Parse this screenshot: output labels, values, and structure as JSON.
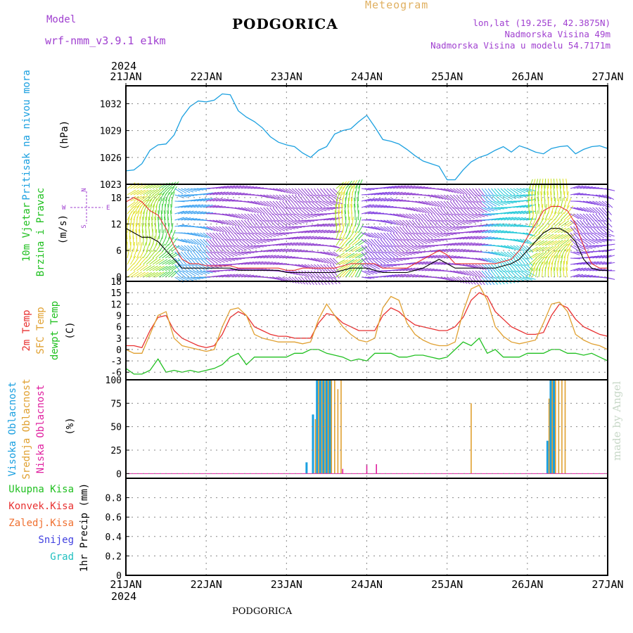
{
  "header": {
    "title": "PODGORICA",
    "subtitle": "Meteogram",
    "model_label": "Model",
    "model_value": "wrf-nmm_v3.9.1  e1km",
    "coords": "lon,lat (19.25E, 42.3875N)",
    "elevation": "Nadmorska Visina 49m",
    "model_elevation": "Nadmorska Visina u modelu 54.7171m",
    "year": "2024"
  },
  "footer": {
    "location": "PODGORICA",
    "credit": "made by Angel"
  },
  "colors": {
    "pressure": "#1ba0e0",
    "temp2m": "#e83030",
    "sfc_temp": "#e0a030",
    "dewpt": "#20c020",
    "cloud_high": "#1ba0e0",
    "cloud_mid": "#e0a030",
    "cloud_low": "#e020a0",
    "wind_speed": "#000000",
    "gust": "#e83030",
    "accent_purple": "#a040d0"
  },
  "chart_data": [
    {
      "type": "line",
      "panel": "pressure",
      "ylabel": [
        "Pritisak na nivou mora",
        "(hPa)"
      ],
      "ylim": [
        1023,
        1034
      ],
      "yticks": [
        1023,
        1026,
        1029,
        1032
      ],
      "x_unit": "days since 2024-01-21 00Z",
      "x_ticks": [
        "21JAN",
        "22JAN",
        "23JAN",
        "24JAN",
        "25JAN",
        "26JAN",
        "27JAN"
      ],
      "grid": true,
      "series": [
        {
          "name": "pressure",
          "x": [
            0.0,
            0.1,
            0.2,
            0.3,
            0.4,
            0.5,
            0.6,
            0.7,
            0.8,
            0.9,
            1.0,
            1.1,
            1.2,
            1.3,
            1.4,
            1.5,
            1.6,
            1.7,
            1.8,
            1.9,
            2.0,
            2.1,
            2.2,
            2.3,
            2.4,
            2.5,
            2.6,
            2.7,
            2.8,
            2.9,
            3.0,
            3.1,
            3.2,
            3.3,
            3.4,
            3.5,
            3.6,
            3.7,
            3.8,
            3.9,
            4.0,
            4.1,
            4.2,
            4.3,
            4.4,
            4.5,
            4.6,
            4.7,
            4.8,
            4.9,
            5.0,
            5.1,
            5.2,
            5.3,
            5.4,
            5.5,
            5.6,
            5.7,
            5.8,
            5.9,
            6.0
          ],
          "y": [
            1024.5,
            1024.6,
            1025.3,
            1026.8,
            1027.4,
            1027.5,
            1028.5,
            1030.5,
            1031.7,
            1032.3,
            1032.2,
            1032.4,
            1033.1,
            1033.0,
            1031.2,
            1030.5,
            1030.0,
            1029.3,
            1028.3,
            1027.7,
            1027.4,
            1027.2,
            1026.5,
            1026.0,
            1026.8,
            1027.2,
            1028.6,
            1029.0,
            1029.2,
            1030.0,
            1030.7,
            1029.4,
            1028.0,
            1027.8,
            1027.5,
            1026.9,
            1026.2,
            1025.6,
            1025.3,
            1025.0,
            1023.5,
            1023.5,
            1024.6,
            1025.5,
            1026.0,
            1026.3,
            1026.8,
            1027.2,
            1026.6,
            1027.3,
            1027.0,
            1026.6,
            1026.4,
            1027.0,
            1027.2,
            1027.3,
            1026.4,
            1026.9,
            1027.2,
            1027.3,
            1027.0
          ]
        }
      ]
    },
    {
      "type": "line",
      "panel": "wind",
      "ylabel": [
        "10m Vjetar",
        "Brzina i Pravac",
        "(m/s)"
      ],
      "compass": [
        "N",
        "W",
        "E",
        "S"
      ],
      "ylim": [
        -1,
        21
      ],
      "yticks": [
        0,
        6,
        12,
        18
      ],
      "grid": true,
      "series": [
        {
          "name": "wind_speed",
          "x": [
            0.0,
            0.1,
            0.2,
            0.3,
            0.4,
            0.5,
            0.6,
            0.7,
            0.8,
            0.9,
            1.0,
            1.1,
            1.2,
            1.3,
            1.4,
            1.5,
            1.6,
            1.7,
            1.8,
            1.9,
            2.0,
            2.1,
            2.2,
            2.3,
            2.4,
            2.5,
            2.6,
            2.7,
            2.8,
            2.9,
            3.0,
            3.1,
            3.2,
            3.3,
            3.4,
            3.5,
            3.6,
            3.7,
            3.8,
            3.9,
            4.0,
            4.1,
            4.2,
            4.3,
            4.4,
            4.5,
            4.6,
            4.7,
            4.8,
            4.9,
            5.0,
            5.1,
            5.2,
            5.3,
            5.4,
            5.5,
            5.6,
            5.7,
            5.8,
            5.9,
            6.0
          ],
          "y": [
            11,
            10,
            9,
            9,
            8,
            6,
            4,
            2,
            2,
            2,
            2,
            2,
            2,
            2,
            1.5,
            1.5,
            1.5,
            1.5,
            1.5,
            1.5,
            1,
            1,
            1,
            1,
            1,
            1,
            1,
            1.5,
            2,
            2,
            2,
            1.5,
            1,
            1,
            1,
            1,
            1.5,
            2,
            3,
            4,
            3,
            2,
            2,
            2,
            2,
            2,
            2,
            2.5,
            3,
            4,
            6,
            8,
            10,
            11,
            11,
            10,
            8,
            4,
            2,
            1.5,
            1.5
          ]
        },
        {
          "name": "gust",
          "x": [
            0.0,
            0.1,
            0.2,
            0.3,
            0.4,
            0.5,
            0.6,
            0.7,
            0.8,
            0.9,
            1.0,
            1.1,
            1.2,
            1.3,
            1.4,
            1.5,
            1.6,
            1.7,
            1.8,
            1.9,
            2.0,
            2.1,
            2.2,
            2.3,
            2.4,
            2.5,
            2.6,
            2.7,
            2.8,
            2.9,
            3.0,
            3.1,
            3.2,
            3.3,
            3.4,
            3.5,
            3.6,
            3.7,
            3.8,
            3.9,
            4.0,
            4.1,
            4.2,
            4.3,
            4.4,
            4.5,
            4.6,
            4.7,
            4.8,
            4.9,
            5.0,
            5.1,
            5.2,
            5.3,
            5.4,
            5.5,
            5.6,
            5.7,
            5.8,
            5.9,
            6.0
          ],
          "y": [
            17,
            18,
            17,
            15,
            14,
            11,
            7,
            4,
            3,
            3,
            2.5,
            2.5,
            2.5,
            2.5,
            2,
            2,
            2,
            2,
            2,
            2,
            1.5,
            1.5,
            2,
            2,
            2,
            2,
            2,
            2.5,
            3,
            3,
            3,
            3,
            2,
            2,
            2,
            2,
            3,
            4,
            5,
            6,
            5,
            3,
            3,
            3,
            3,
            3,
            3,
            3.5,
            4,
            6,
            9,
            12,
            15,
            16,
            16,
            15,
            12,
            7,
            3,
            2,
            2
          ]
        }
      ]
    },
    {
      "type": "line",
      "panel": "temperature",
      "ylabel": [
        "2m Temp",
        "SFC Temp",
        "dewpt Temp",
        "(C)"
      ],
      "ylim": [
        -8,
        18
      ],
      "yticks": [
        -6,
        -3,
        0,
        3,
        6,
        9,
        12,
        15,
        18
      ],
      "grid": true,
      "series": [
        {
          "name": "2m Temp",
          "x": [
            0.0,
            0.1,
            0.2,
            0.3,
            0.4,
            0.5,
            0.6,
            0.7,
            0.8,
            0.9,
            1.0,
            1.1,
            1.2,
            1.3,
            1.4,
            1.5,
            1.6,
            1.7,
            1.8,
            1.9,
            2.0,
            2.1,
            2.2,
            2.3,
            2.4,
            2.5,
            2.6,
            2.7,
            2.8,
            2.9,
            3.0,
            3.1,
            3.2,
            3.3,
            3.4,
            3.5,
            3.6,
            3.7,
            3.8,
            3.9,
            4.0,
            4.1,
            4.2,
            4.3,
            4.4,
            4.5,
            4.6,
            4.7,
            4.8,
            4.9,
            5.0,
            5.1,
            5.2,
            5.3,
            5.4,
            5.5,
            5.6,
            5.7,
            5.8,
            5.9,
            6.0
          ],
          "y": [
            1,
            1,
            0.5,
            5,
            8.5,
            9,
            5,
            3,
            2,
            1,
            0.5,
            1,
            4,
            8.5,
            10,
            9,
            6,
            5,
            4,
            3.5,
            3.5,
            3,
            3,
            3,
            7,
            9.5,
            9,
            7,
            6,
            5,
            5,
            5,
            9,
            11,
            10,
            8,
            6.5,
            6,
            5.5,
            5,
            5,
            6,
            8.5,
            13,
            15,
            14,
            10,
            8,
            6,
            5,
            4,
            4,
            4.5,
            9,
            12,
            11,
            8,
            6,
            5,
            4,
            3.5
          ]
        },
        {
          "name": "SFC Temp",
          "x": [
            0.0,
            0.1,
            0.2,
            0.3,
            0.4,
            0.5,
            0.6,
            0.7,
            0.8,
            0.9,
            1.0,
            1.1,
            1.2,
            1.3,
            1.4,
            1.5,
            1.6,
            1.7,
            1.8,
            1.9,
            2.0,
            2.1,
            2.2,
            2.3,
            2.4,
            2.5,
            2.6,
            2.7,
            2.8,
            2.9,
            3.0,
            3.1,
            3.2,
            3.3,
            3.4,
            3.5,
            3.6,
            3.7,
            3.8,
            3.9,
            4.0,
            4.1,
            4.2,
            4.3,
            4.4,
            4.5,
            4.6,
            4.7,
            4.8,
            4.9,
            5.0,
            5.1,
            5.2,
            5.3,
            5.4,
            5.5,
            5.6,
            5.7,
            5.8,
            5.9,
            6.0
          ],
          "y": [
            0,
            -1,
            -1,
            4,
            9,
            10,
            3,
            1,
            0.5,
            0,
            -0.5,
            0,
            6,
            10.5,
            11,
            9,
            4,
            3,
            2.5,
            2,
            2,
            2,
            1.5,
            2,
            8,
            12,
            9,
            6,
            4,
            2.5,
            2,
            3,
            11,
            14,
            13,
            7,
            4,
            2.5,
            1.5,
            1,
            1,
            2,
            10,
            16,
            17,
            13,
            6,
            3.5,
            2,
            1.5,
            2,
            2.5,
            7,
            12,
            12.5,
            10,
            4,
            2.5,
            1.5,
            1,
            0
          ]
        },
        {
          "name": "dewpt Temp",
          "x": [
            0.0,
            0.1,
            0.2,
            0.3,
            0.4,
            0.5,
            0.6,
            0.7,
            0.8,
            0.9,
            1.0,
            1.1,
            1.2,
            1.3,
            1.4,
            1.5,
            1.6,
            1.7,
            1.8,
            1.9,
            2.0,
            2.1,
            2.2,
            2.3,
            2.4,
            2.5,
            2.6,
            2.7,
            2.8,
            2.9,
            3.0,
            3.1,
            3.2,
            3.3,
            3.4,
            3.5,
            3.6,
            3.7,
            3.8,
            3.9,
            4.0,
            4.1,
            4.2,
            4.3,
            4.4,
            4.5,
            4.6,
            4.7,
            4.8,
            4.9,
            5.0,
            5.1,
            5.2,
            5.3,
            5.4,
            5.5,
            5.6,
            5.7,
            5.8,
            5.9,
            6.0
          ],
          "y": [
            -5,
            -6.5,
            -6.5,
            -5.5,
            -2.5,
            -6,
            -5.5,
            -6,
            -5.5,
            -6,
            -5.5,
            -5,
            -4,
            -2,
            -1,
            -4,
            -2,
            -2,
            -2,
            -2,
            -2,
            -1,
            -1,
            0,
            0,
            -1,
            -1.5,
            -2,
            -3,
            -2.5,
            -3,
            -1,
            -1,
            -1,
            -2,
            -2,
            -1.5,
            -1.5,
            -2,
            -2.5,
            -2,
            0,
            2,
            1,
            3,
            -1,
            0,
            -2,
            -2,
            -2,
            -1,
            -1,
            -1,
            0,
            0,
            -1,
            -1,
            -1.5,
            -1,
            -2,
            -3
          ]
        }
      ]
    },
    {
      "type": "bar",
      "panel": "cloud",
      "ylabel": [
        "Visoka Oblacnost",
        "Srednja Oblacnost",
        "Niska Oblacnost",
        "(%)"
      ],
      "ylim": [
        -5,
        100
      ],
      "yticks": [
        0,
        25,
        50,
        75,
        100
      ],
      "grid": true,
      "series": [
        {
          "name": "Visoka Oblacnost",
          "x": [
            2.25,
            2.33,
            2.38,
            2.42,
            2.46,
            2.5,
            2.54,
            5.25,
            5.29,
            5.33
          ],
          "y": [
            12,
            63,
            100,
            100,
            100,
            100,
            100,
            35,
            100,
            100
          ]
        },
        {
          "name": "Srednja Oblacnost",
          "x": [
            2.36,
            2.4,
            2.44,
            2.48,
            2.52,
            2.56,
            2.6,
            2.64,
            2.68,
            4.3,
            5.27,
            5.31,
            5.35,
            5.39,
            5.43,
            5.47
          ],
          "y": [
            58,
            100,
            100,
            100,
            100,
            100,
            100,
            90,
            100,
            75,
            80,
            100,
            100,
            100,
            100,
            100
          ]
        },
        {
          "name": "Niska Oblacnost",
          "x": [
            2.7,
            3.0,
            3.12
          ],
          "y": [
            5,
            10,
            10
          ]
        }
      ]
    },
    {
      "type": "line",
      "panel": "precip",
      "ylabel": [
        "1hr Precip (mm)"
      ],
      "legend": [
        "Ukupna Kisa",
        "Konvek.Kisa",
        "Zaledj.Kisa",
        "Snijeg",
        "Grad"
      ],
      "ylim": [
        0,
        1
      ],
      "yticks": [
        0,
        0.2,
        0.4,
        0.6,
        0.8
      ],
      "grid": true,
      "series": []
    }
  ],
  "ui": {
    "x_labels": [
      "21JAN",
      "22JAN",
      "23JAN",
      "24JAN",
      "25JAN",
      "26JAN",
      "27JAN"
    ],
    "legend_colors": [
      "#20c020",
      "#e83030",
      "#f07030",
      "#4040e0",
      "#20c0c0"
    ]
  }
}
